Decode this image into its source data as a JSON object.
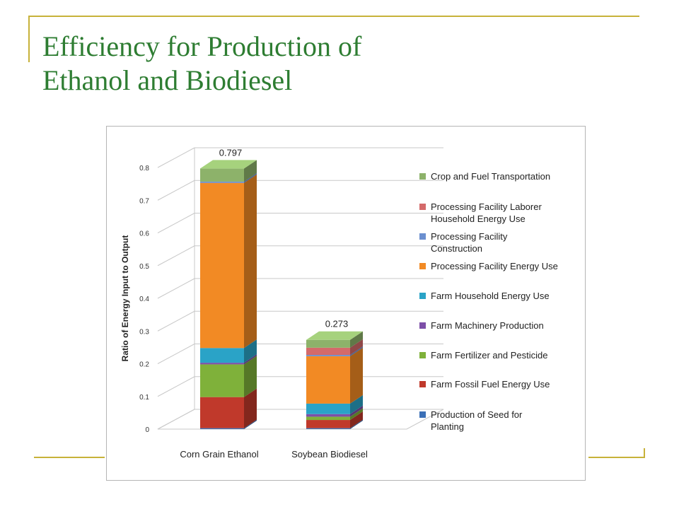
{
  "slide": {
    "title_line1": "Efficiency for Production of",
    "title_line2": "Ethanol and Biodiesel",
    "accent_color": "#c7b23a",
    "title_color": "#2e7d32"
  },
  "chart_data": {
    "type": "bar",
    "stacked": true,
    "three_d": true,
    "title": "",
    "xlabel": "",
    "ylabel": "Ratio of Energy Input to Output",
    "ylim": [
      0,
      0.8
    ],
    "yticks": [
      "0",
      "0.1",
      "0.2",
      "0.3",
      "0.4",
      "0.5",
      "0.6",
      "0.7",
      "0.8"
    ],
    "grid": true,
    "legend_position": "right",
    "categories": [
      "Corn Grain Ethanol",
      "Soybean Biodiesel"
    ],
    "totals": [
      0.797,
      0.273
    ],
    "total_labels": [
      "0.797",
      "0.273"
    ],
    "series": [
      {
        "name": "Production of Seed for Planting",
        "color": "#3b6fb6",
        "values": [
          0.003,
          0.003
        ]
      },
      {
        "name": "Farm Fossil Fuel Energy Use",
        "color": "#c0392b",
        "values": [
          0.095,
          0.025
        ]
      },
      {
        "name": "Farm Fertilizer and Pesticide",
        "color": "#7fb13a",
        "values": [
          0.1,
          0.01
        ]
      },
      {
        "name": "Farm Machinery Production",
        "color": "#7d4fa8",
        "values": [
          0.005,
          0.008
        ]
      },
      {
        "name": "Farm Household Energy Use",
        "color": "#2aa3c7",
        "values": [
          0.045,
          0.032
        ]
      },
      {
        "name": "Processing Facility Energy Use",
        "color": "#f28a24",
        "values": [
          0.505,
          0.145
        ]
      },
      {
        "name": "Processing Facility Construction",
        "color": "#6b8fcf",
        "values": [
          0.004,
          0.004
        ]
      },
      {
        "name": "Processing Facility Laborer Household Energy Use",
        "color": "#d46a6a",
        "values": [
          0.0,
          0.022
        ]
      },
      {
        "name": "Crop and Fuel Transportation",
        "color": "#8db26a",
        "values": [
          0.04,
          0.024
        ]
      }
    ],
    "legend_order": [
      8,
      7,
      6,
      5,
      4,
      3,
      2,
      1,
      0
    ],
    "legend_lines": [
      [
        "Crop and Fuel Transportation"
      ],
      [
        "Processing Facility Laborer",
        "Household Energy Use"
      ],
      [
        "Processing Facility",
        "Construction"
      ],
      [
        "Processing Facility Energy Use"
      ],
      [
        "Farm Household Energy Use"
      ],
      [
        "Farm Machinery Production"
      ],
      [
        "Farm Fertilizer and Pesticide"
      ],
      [
        "Farm Fossil Fuel Energy Use"
      ],
      [
        "Production of Seed for",
        "Planting"
      ]
    ]
  }
}
